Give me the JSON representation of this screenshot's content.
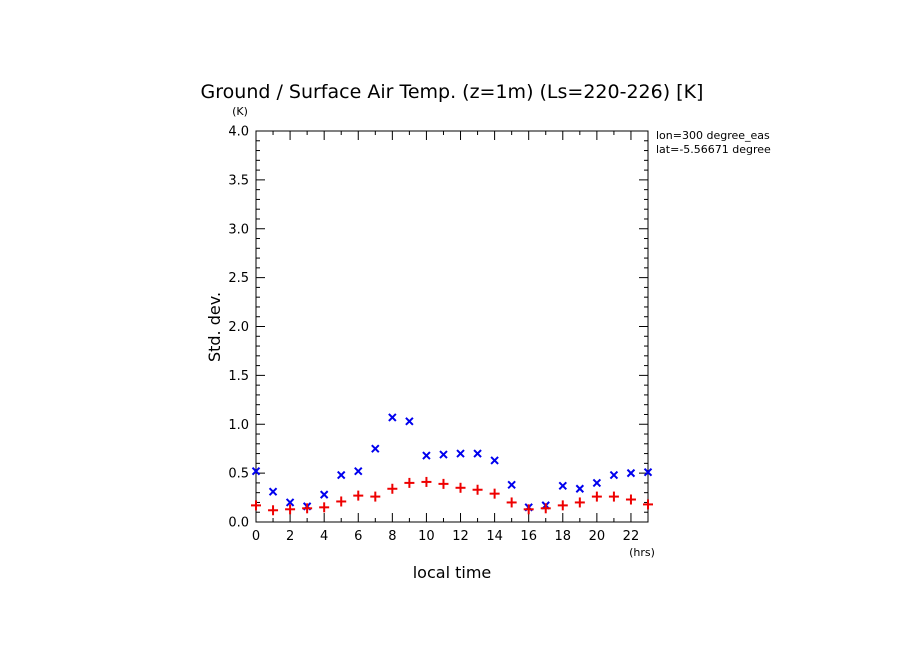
{
  "chart_data": {
    "type": "scatter",
    "title": "Ground / Surface Air Temp. (z=1m) (Ls=220-226) [K]",
    "xlabel": "local time",
    "ylabel": "Std. dev.",
    "x_unit": "(hrs)",
    "y_unit": "(K)",
    "xlim": [
      0,
      23
    ],
    "ylim": [
      0,
      4.0
    ],
    "x_ticks": [
      "0",
      "2",
      "4",
      "6",
      "8",
      "10",
      "12",
      "14",
      "16",
      "18",
      "20",
      "22"
    ],
    "y_ticks": [
      "0.0",
      "0.5",
      "1.0",
      "1.5",
      "2.0",
      "2.5",
      "3.0",
      "3.5",
      "4.0"
    ],
    "annotations": [
      "lon=300 degree_eas",
      "lat=-5.56671 degree"
    ],
    "grid": false,
    "x": [
      0,
      1,
      2,
      3,
      4,
      5,
      6,
      7,
      8,
      9,
      10,
      11,
      12,
      13,
      14,
      15,
      16,
      17,
      18,
      19,
      20,
      21,
      22,
      23
    ],
    "series": [
      {
        "marker": "x",
        "color": "#0000ee",
        "values": [
          0.52,
          0.31,
          0.2,
          0.16,
          0.28,
          0.48,
          0.52,
          0.75,
          1.07,
          1.03,
          0.68,
          0.69,
          0.7,
          0.7,
          0.63,
          0.38,
          0.15,
          0.17,
          0.37,
          0.34,
          0.4,
          0.48,
          0.5,
          0.51
        ]
      },
      {
        "marker": "+",
        "color": "#ee0000",
        "values": [
          0.17,
          0.12,
          0.13,
          0.14,
          0.15,
          0.21,
          0.27,
          0.26,
          0.34,
          0.4,
          0.41,
          0.39,
          0.35,
          0.33,
          0.29,
          0.2,
          0.13,
          0.14,
          0.17,
          0.2,
          0.26,
          0.26,
          0.23,
          0.18
        ]
      }
    ]
  }
}
